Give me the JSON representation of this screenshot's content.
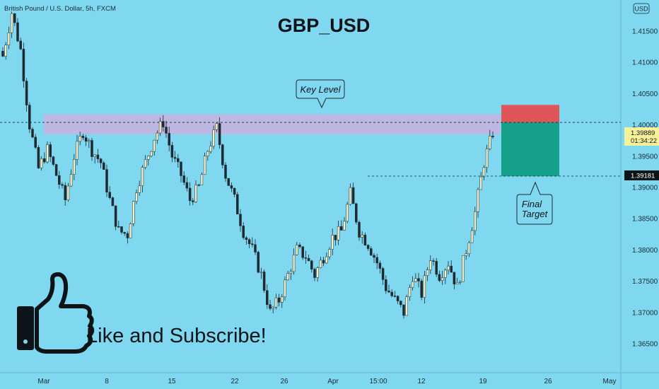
{
  "header": {
    "symbol_desc": "British Pound / U.S. Dollar, 5h, FXCM",
    "currency_badge": "USD"
  },
  "title": "GBP_USD",
  "annotations": {
    "key_level": "Key Level",
    "final_target_line1": "Final",
    "final_target_line2": "Target",
    "cta": "Like and Subscribe!",
    "cta_icon": "thumbs-up-icon"
  },
  "price_badges": {
    "current_price": "1.39889",
    "countdown": "01:34:22",
    "target_price": "1.39181"
  },
  "colors": {
    "background": "#7fd8f0",
    "key_zone": "#c4b4e0",
    "stop_zone": "#e0555a",
    "target_zone": "#15a08c",
    "bull_candle": "#f5f0c8",
    "bear_candle": "#1f2a30"
  },
  "chart_data": {
    "type": "candlestick",
    "title": "GBP_USD",
    "y_ticks": [
      "1.41500",
      "1.41000",
      "1.40500",
      "1.40000",
      "1.39500",
      "1.39000",
      "1.38500",
      "1.38000",
      "1.37500",
      "1.37000",
      "1.36500"
    ],
    "x_ticks": [
      "Mar",
      "8",
      "15",
      "22",
      "26",
      "Apr",
      "15:00",
      "12",
      "19",
      "26",
      "May"
    ],
    "ylim": [
      1.3625,
      1.42
    ],
    "key_level_zone": [
      1.3985,
      1.4017
    ],
    "stop_zone": [
      1.4004,
      1.4032
    ],
    "target_zone": [
      1.3918,
      1.4004
    ],
    "horizontal_lines": [
      1.4004,
      1.39181
    ],
    "close_path": [
      [
        0,
        1.411
      ],
      [
        3,
        1.418
      ],
      [
        6,
        1.412
      ],
      [
        9,
        1.4
      ],
      [
        12,
        1.393
      ],
      [
        15,
        1.396
      ],
      [
        18,
        1.392
      ],
      [
        21,
        1.388
      ],
      [
        24,
        1.395
      ],
      [
        27,
        1.399
      ],
      [
        30,
        1.396
      ],
      [
        33,
        1.394
      ],
      [
        36,
        1.388
      ],
      [
        39,
        1.383
      ],
      [
        42,
        1.3825
      ],
      [
        45,
        1.39
      ],
      [
        48,
        1.394
      ],
      [
        51,
        1.398
      ],
      [
        54,
        1.4005
      ],
      [
        57,
        1.395
      ],
      [
        60,
        1.392
      ],
      [
        63,
        1.388
      ],
      [
        66,
        1.39
      ],
      [
        69,
        1.396
      ],
      [
        72,
        1.3995
      ],
      [
        75,
        1.392
      ],
      [
        78,
        1.388
      ],
      [
        81,
        1.383
      ],
      [
        84,
        1.38
      ],
      [
        87,
        1.376
      ],
      [
        90,
        1.37
      ],
      [
        93,
        1.372
      ],
      [
        96,
        1.376
      ],
      [
        99,
        1.38
      ],
      [
        102,
        1.379
      ],
      [
        105,
        1.376
      ],
      [
        108,
        1.379
      ],
      [
        111,
        1.382
      ],
      [
        114,
        1.383
      ],
      [
        117,
        1.389
      ],
      [
        120,
        1.383
      ],
      [
        123,
        1.381
      ],
      [
        126,
        1.378
      ],
      [
        129,
        1.374
      ],
      [
        132,
        1.372
      ],
      [
        135,
        1.37
      ],
      [
        138,
        1.376
      ],
      [
        141,
        1.373
      ],
      [
        144,
        1.379
      ],
      [
        147,
        1.376
      ],
      [
        150,
        1.378
      ],
      [
        153,
        1.374
      ],
      [
        156,
        1.38
      ],
      [
        159,
        1.386
      ],
      [
        162,
        1.394
      ],
      [
        165,
        1.3988
      ]
    ]
  }
}
